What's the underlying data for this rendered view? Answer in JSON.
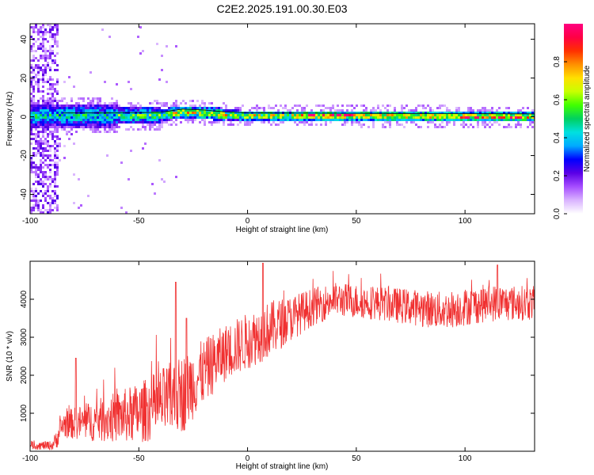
{
  "chart_data": [
    {
      "type": "heatmap",
      "title": "C2E2.2025.191.00.30.E03",
      "xlabel": "Height of straight line (km)",
      "ylabel": "Frequency (Hz)",
      "xlim": [
        -100,
        132
      ],
      "ylim": [
        -50,
        48
      ],
      "xticks": [
        -100,
        -50,
        0,
        50,
        100
      ],
      "yticks": [
        -40,
        -20,
        0,
        20,
        40
      ],
      "colorbar": {
        "label": "Normalized spectral amplitude",
        "range": [
          0,
          1
        ],
        "ticks": [
          "0.0",
          "0.2",
          "0.4",
          "0.6",
          "0.8"
        ],
        "colors": [
          "#ffffff",
          "#d9b3ff",
          "#a64dff",
          "#5a00e6",
          "#0000ff",
          "#00aaff",
          "#00e0e0",
          "#00d060",
          "#40ff00",
          "#c8ff00",
          "#ffe000",
          "#ff9000",
          "#ff3000",
          "#ff0044",
          "#ff0080"
        ]
      },
      "ridge_trace": [
        {
          "x": -85,
          "y": 0.5
        },
        {
          "x": -60,
          "y": 0.5
        },
        {
          "x": -40,
          "y": 0.8
        },
        {
          "x": -30,
          "y": 2.5
        },
        {
          "x": -20,
          "y": 2.0
        },
        {
          "x": -10,
          "y": 1.0
        },
        {
          "x": 0,
          "y": 0.5
        },
        {
          "x": 132,
          "y": 0
        }
      ]
    },
    {
      "type": "line",
      "xlabel": "Height of straight line (km)",
      "ylabel": "SNR (10 * v/v)",
      "xlim": [
        -100,
        132
      ],
      "ylim": [
        0,
        5000
      ],
      "xticks": [
        -100,
        -50,
        0,
        50,
        100
      ],
      "yticks": [
        1000,
        2000,
        3000,
        4000
      ],
      "color": "#f03030",
      "envelope": [
        {
          "x": -100,
          "mean": 150,
          "spread": 200
        },
        {
          "x": -90,
          "mean": 150,
          "spread": 250
        },
        {
          "x": -88,
          "mean": 300,
          "spread": 500
        },
        {
          "x": -85,
          "mean": 700,
          "spread": 700
        },
        {
          "x": -70,
          "mean": 800,
          "spread": 1100
        },
        {
          "x": -50,
          "mean": 1000,
          "spread": 1600
        },
        {
          "x": -30,
          "mean": 1500,
          "spread": 2100
        },
        {
          "x": -20,
          "mean": 2100,
          "spread": 1700
        },
        {
          "x": -10,
          "mean": 2600,
          "spread": 1500
        },
        {
          "x": 0,
          "mean": 2900,
          "spread": 1500
        },
        {
          "x": 10,
          "mean": 3200,
          "spread": 1500
        },
        {
          "x": 20,
          "mean": 3500,
          "spread": 1200
        },
        {
          "x": 30,
          "mean": 3800,
          "spread": 1000
        },
        {
          "x": 40,
          "mean": 4000,
          "spread": 900
        },
        {
          "x": 60,
          "mean": 3900,
          "spread": 900
        },
        {
          "x": 90,
          "mean": 3700,
          "spread": 1000
        },
        {
          "x": 110,
          "mean": 3900,
          "spread": 1000
        },
        {
          "x": 132,
          "mean": 3900,
          "spread": 900
        }
      ],
      "spikes": [
        {
          "x": -79,
          "y": 2450
        },
        {
          "x": -33,
          "y": 4450
        },
        {
          "x": -28,
          "y": 3500
        },
        {
          "x": 7,
          "y": 4950
        },
        {
          "x": 115,
          "y": 4900
        }
      ]
    }
  ]
}
